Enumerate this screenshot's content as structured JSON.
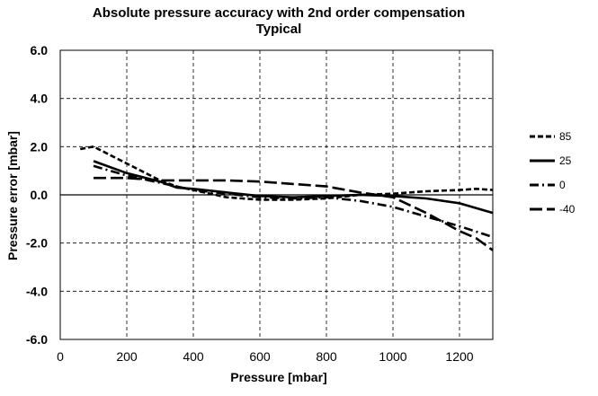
{
  "chart_data": {
    "type": "line",
    "title": "Absolute pressure accuracy with 2nd order compensation",
    "subtitle": "Typical",
    "xlabel": "Pressure  [mbar]",
    "ylabel": "Pressure error [mbar]",
    "xlim": [
      0,
      1300
    ],
    "ylim": [
      -6.0,
      6.0
    ],
    "x_ticks": [
      "0",
      "200",
      "400",
      "600",
      "800",
      "1000",
      "1200"
    ],
    "y_ticks": [
      "6.0",
      "4.0",
      "2.0",
      "0.0",
      "-2.0",
      "-4.0",
      "-6.0"
    ],
    "grid": "dashed",
    "legend_position": "right",
    "series": [
      {
        "name": "85",
        "style": "short-dash",
        "x": [
          60,
          100,
          200,
          300,
          350,
          400,
          500,
          600,
          700,
          800,
          900,
          1000,
          1100,
          1200,
          1250,
          1300
        ],
        "y": [
          1.9,
          2.0,
          1.3,
          0.6,
          0.35,
          0.2,
          -0.1,
          -0.2,
          -0.2,
          -0.15,
          0.0,
          0.05,
          0.15,
          0.2,
          0.25,
          0.2
        ]
      },
      {
        "name": "25",
        "style": "solid",
        "x": [
          100,
          200,
          300,
          350,
          400,
          500,
          600,
          700,
          800,
          900,
          1000,
          1100,
          1200,
          1300
        ],
        "y": [
          1.4,
          0.9,
          0.55,
          0.3,
          0.25,
          0.1,
          -0.05,
          -0.1,
          -0.05,
          0.0,
          -0.05,
          -0.15,
          -0.35,
          -0.75
        ]
      },
      {
        "name": "0",
        "style": "dash-dot",
        "x": [
          100,
          200,
          300,
          350,
          400,
          500,
          600,
          700,
          800,
          900,
          1000,
          1100,
          1200,
          1300
        ],
        "y": [
          1.2,
          0.8,
          0.5,
          0.35,
          0.2,
          0.05,
          -0.1,
          -0.15,
          -0.1,
          -0.25,
          -0.5,
          -0.9,
          -1.3,
          -1.75
        ]
      },
      {
        "name": "-40",
        "style": "long-dash",
        "x": [
          100,
          200,
          300,
          400,
          500,
          600,
          700,
          800,
          900,
          1000,
          1100,
          1200,
          1250,
          1300
        ],
        "y": [
          0.7,
          0.7,
          0.6,
          0.6,
          0.6,
          0.55,
          0.45,
          0.35,
          0.1,
          -0.1,
          -0.75,
          -1.5,
          -1.8,
          -2.3
        ]
      }
    ]
  }
}
